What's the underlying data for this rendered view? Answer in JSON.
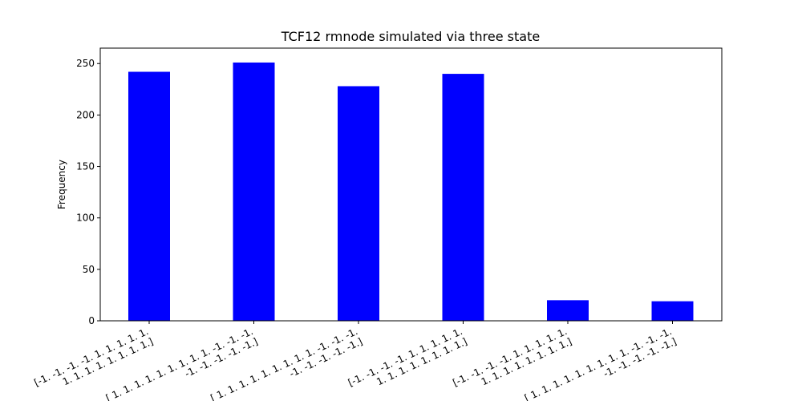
{
  "chart_data": {
    "type": "bar",
    "title": "TCF12 rmnode simulated via three state",
    "xlabel": "",
    "ylabel": "Frequency",
    "ylim": [
      0,
      265
    ],
    "yticks": [
      0,
      50,
      100,
      150,
      200,
      250
    ],
    "categories": [
      "[-1. -1. -1. -1. 1. 1. 1. 1. 1. 1. 1. 1. 1. 1. 1. 1. 1.]",
      "[ 1. 1. 1. 1. 1. 1. 1. 1. 1. -1. -1. -1. -1. -1. -1. -1. -1.]",
      "[ 1. 1. 1. 1. 1. 1. 1. 1. 1. -1. -1. -1. -1. -1. -1. -1. -1.]",
      "[-1. -1. -1. -1. 1. 1. 1. 1. 1. 1. 1. 1. 1. 1. 1. 1. 1.]",
      "[-1. -1. -1. -1. 1. 1. 1. 1. 1. 1. 1. 1. 1. 1. 1. 1. 1.]",
      "[ 1. 1. 1. 1. 1. 1. 1. 1. 1. -1. -1. -1. -1. -1. -1. -1. -1.]"
    ],
    "category_lines": [
      [
        "[-1. -1. -1. -1. 1. 1. 1. 1. 1.",
        "1. 1. 1. 1. 1. 1. 1. 1.]"
      ],
      [
        "[ 1. 1. 1. 1. 1. 1. 1. 1. 1. -1. -1. -1.",
        "-1. -1. -1. -1. -1.]"
      ],
      [
        "[ 1. 1. 1. 1. 1. 1. 1. 1. 1. -1. -1. -1.",
        "-1. -1. -1. -1. -1.]"
      ],
      [
        "[-1. -1. -1. -1. 1. 1. 1. 1. 1.",
        "1. 1. 1. 1. 1. 1. 1. 1.]"
      ],
      [
        "[-1. -1. -1. -1. 1. 1. 1. 1. 1.",
        "1. 1. 1. 1. 1. 1. 1. 1.]"
      ],
      [
        "[ 1. 1. 1. 1. 1. 1. 1. 1. 1. -1. -1. -1.",
        "-1. -1. -1. -1. -1.]"
      ]
    ],
    "values": [
      242,
      251,
      228,
      240,
      20,
      19
    ],
    "bar_color": "#0000ff",
    "grid": false,
    "legend": "none"
  }
}
